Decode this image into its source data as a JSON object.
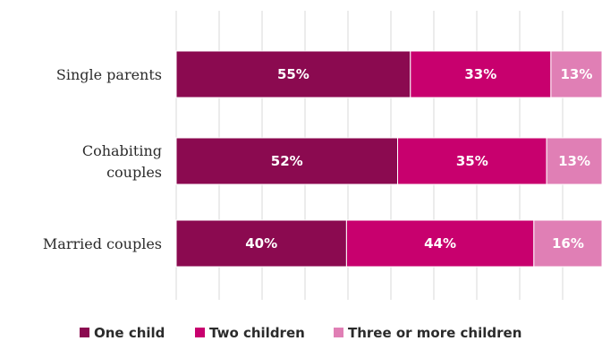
{
  "chart_data": {
    "type": "bar",
    "orientation": "horizontal",
    "stacked": true,
    "categories": [
      [
        "Single parents"
      ],
      [
        "Cohabiting",
        "couples"
      ],
      [
        "Married couples"
      ]
    ],
    "series": [
      {
        "name": "One child",
        "values": [
          55,
          52,
          40
        ],
        "labels": [
          "55%",
          "52%",
          "40%"
        ],
        "color": "#8b0a50"
      },
      {
        "name": "Two children",
        "values": [
          33,
          35,
          44
        ],
        "labels": [
          "33%",
          "35%",
          "44%"
        ],
        "color": "#c8006e"
      },
      {
        "name": "Three or more children",
        "values": [
          13,
          13,
          16
        ],
        "labels": [
          "13%",
          "13%",
          "16%"
        ],
        "color": "#e07fb5"
      }
    ],
    "xlim": [
      0,
      100
    ],
    "grid": true,
    "gridline_color": "#d9d9d9",
    "legend_position": "bottom"
  }
}
